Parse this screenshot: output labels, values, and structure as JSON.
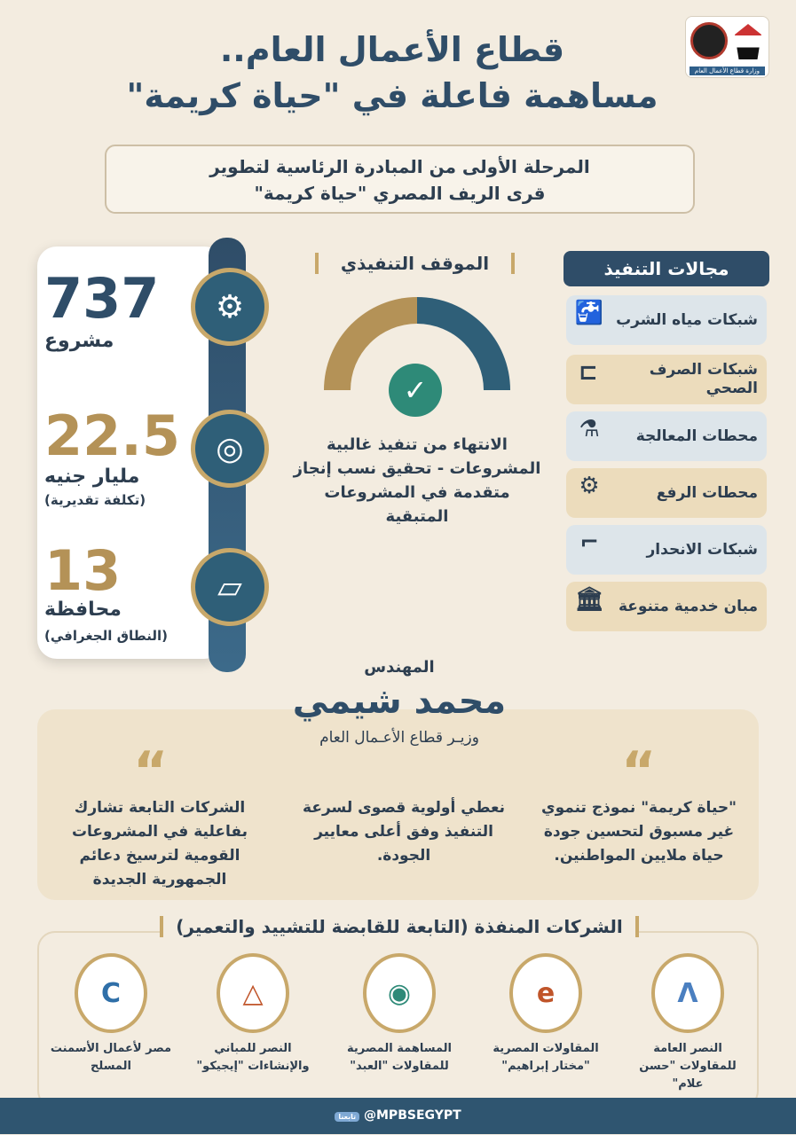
{
  "header": {
    "title_line1": "قطاع الأعمال العام..",
    "title_line2": "مساهمة فاعلة في \"حياة كريمة\"",
    "logo_caption": "وزارة قطاع الأعمال العام",
    "subtitle_line1": "المرحلة الأولى من المبادرة الرئاسية لتطوير",
    "subtitle_line2": "قرى الريف المصري \"حياة كريمة\""
  },
  "stats": [
    {
      "value": "737",
      "label": "مشروع",
      "note": "",
      "icon": "gear-wrench-icon"
    },
    {
      "value": "22.5",
      "label": "مليار جنيه",
      "note": "(تكلفة تقديرية)",
      "icon": "coins-icon"
    },
    {
      "value": "13",
      "label": "محافظة",
      "note": "(النطاق الجغرافي)",
      "icon": "egypt-map-icon"
    }
  ],
  "status": {
    "title": "الموقف التنفيذي",
    "description": "الانتهاء من تنفيذ غالبية المشروعات - تحقيق نسب إنجاز متقدمة في المشروعات المتبقية"
  },
  "areas": {
    "title": "مجالات التنفيذ",
    "items": [
      {
        "label": "شبكات مياه الشرب",
        "icon": "water-tap-icon"
      },
      {
        "label": "شبكات الصرف الصحي",
        "icon": "pipe-icon"
      },
      {
        "label": "محطات المعالجة",
        "icon": "treatment-plant-icon"
      },
      {
        "label": "محطات الرفع",
        "icon": "pump-icon"
      },
      {
        "label": "شبكات الانحدار",
        "icon": "drain-pipe-icon"
      },
      {
        "label": "مبان خدمية متنوعة",
        "icon": "building-icon"
      }
    ]
  },
  "minister": {
    "prefix": "المهندس",
    "name": "محمد شيمي",
    "role": "وزيـر قطاع الأعـمال العام"
  },
  "quotes": [
    "\"حياة كريمة\" نموذج تنموي غير مسبوق لتحسين جودة حياة ملايين المواطنين.",
    "نعطي أولوية قصوى لسرعة التنفيذ وفق أعلى معايير الجودة.",
    "الشركات التابعة تشارك بفاعلية في المشروعات القومية لترسيخ دعائم الجمهورية الجديدة"
  ],
  "companies": {
    "title": "الشركات المنفذة (التابعة للقابضة للتشييد والتعمير)",
    "items": [
      "النصر العامة للمقاولات \"حسن علام\"",
      "المقاولات المصرية \"مختار إبراهيم\"",
      "المساهمة المصرية للمقاولات \"العبد\"",
      "النصر للمباني والإنشاءات \"إيجيكو\"",
      "مصر لأعمال الأسمنت المسلح"
    ]
  },
  "footer": {
    "handle": "@MPBSEGYPT",
    "badge": "تابعنا"
  },
  "colors": {
    "navy": "#2f4d68",
    "gold": "#b49257",
    "background": "#f3ece0"
  }
}
